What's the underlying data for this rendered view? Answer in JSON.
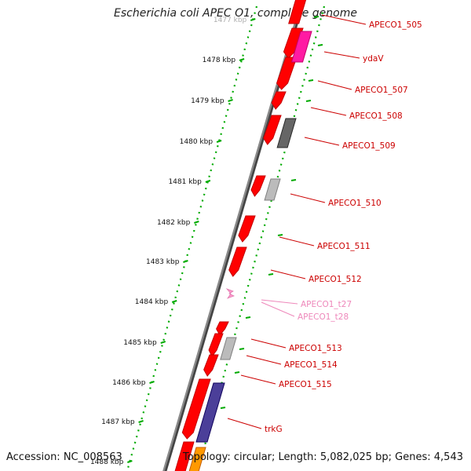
{
  "title": "Escherichia coli APEC O1, complete genome",
  "footer": {
    "accession": "Accession: NC_008563",
    "summary": "Topology: circular; Length: 5,082,025 bp; Genes: 4,543"
  },
  "ruler": {
    "ticks": [
      {
        "label": "1477 kbp"
      },
      {
        "label": "1478 kbp"
      },
      {
        "label": "1479 kbp"
      },
      {
        "label": "1480 kbp"
      },
      {
        "label": "1481 kbp"
      },
      {
        "label": "1482 kbp"
      },
      {
        "label": "1483 kbp"
      },
      {
        "label": "1484 kbp"
      },
      {
        "label": "1485 kbp"
      },
      {
        "label": "1486 kbp"
      },
      {
        "label": "1487 kbp"
      },
      {
        "label": "1488 kbp"
      }
    ]
  },
  "colors": {
    "cds": "#ff0000",
    "trna": "#ff99cc",
    "pink_feature": "#ff1aa3",
    "gray_dark": "#666666",
    "gray_light": "#bbbbbb",
    "purple": "#4b3f99",
    "orange": "#ff9900",
    "ruler": "#00aa00",
    "backbone": "#888888"
  },
  "labels": [
    {
      "text": "APECO1_505",
      "color": "#cc0000"
    },
    {
      "text": "ydaV",
      "color": "#cc0000"
    },
    {
      "text": "APECO1_507",
      "color": "#cc0000"
    },
    {
      "text": "APECO1_508",
      "color": "#cc0000"
    },
    {
      "text": "APECO1_509",
      "color": "#cc0000"
    },
    {
      "text": "APECO1_510",
      "color": "#cc0000"
    },
    {
      "text": "APECO1_511",
      "color": "#cc0000"
    },
    {
      "text": "APECO1_512",
      "color": "#cc0000"
    },
    {
      "text": "APECO1_t27",
      "color": "#ee88bb"
    },
    {
      "text": "APECO1_t28",
      "color": "#ee88bb"
    },
    {
      "text": "APECO1_513",
      "color": "#cc0000"
    },
    {
      "text": "APECO1_514",
      "color": "#cc0000"
    },
    {
      "text": "APECO1_515",
      "color": "#cc0000"
    },
    {
      "text": "trkG",
      "color": "#cc0000"
    }
  ]
}
